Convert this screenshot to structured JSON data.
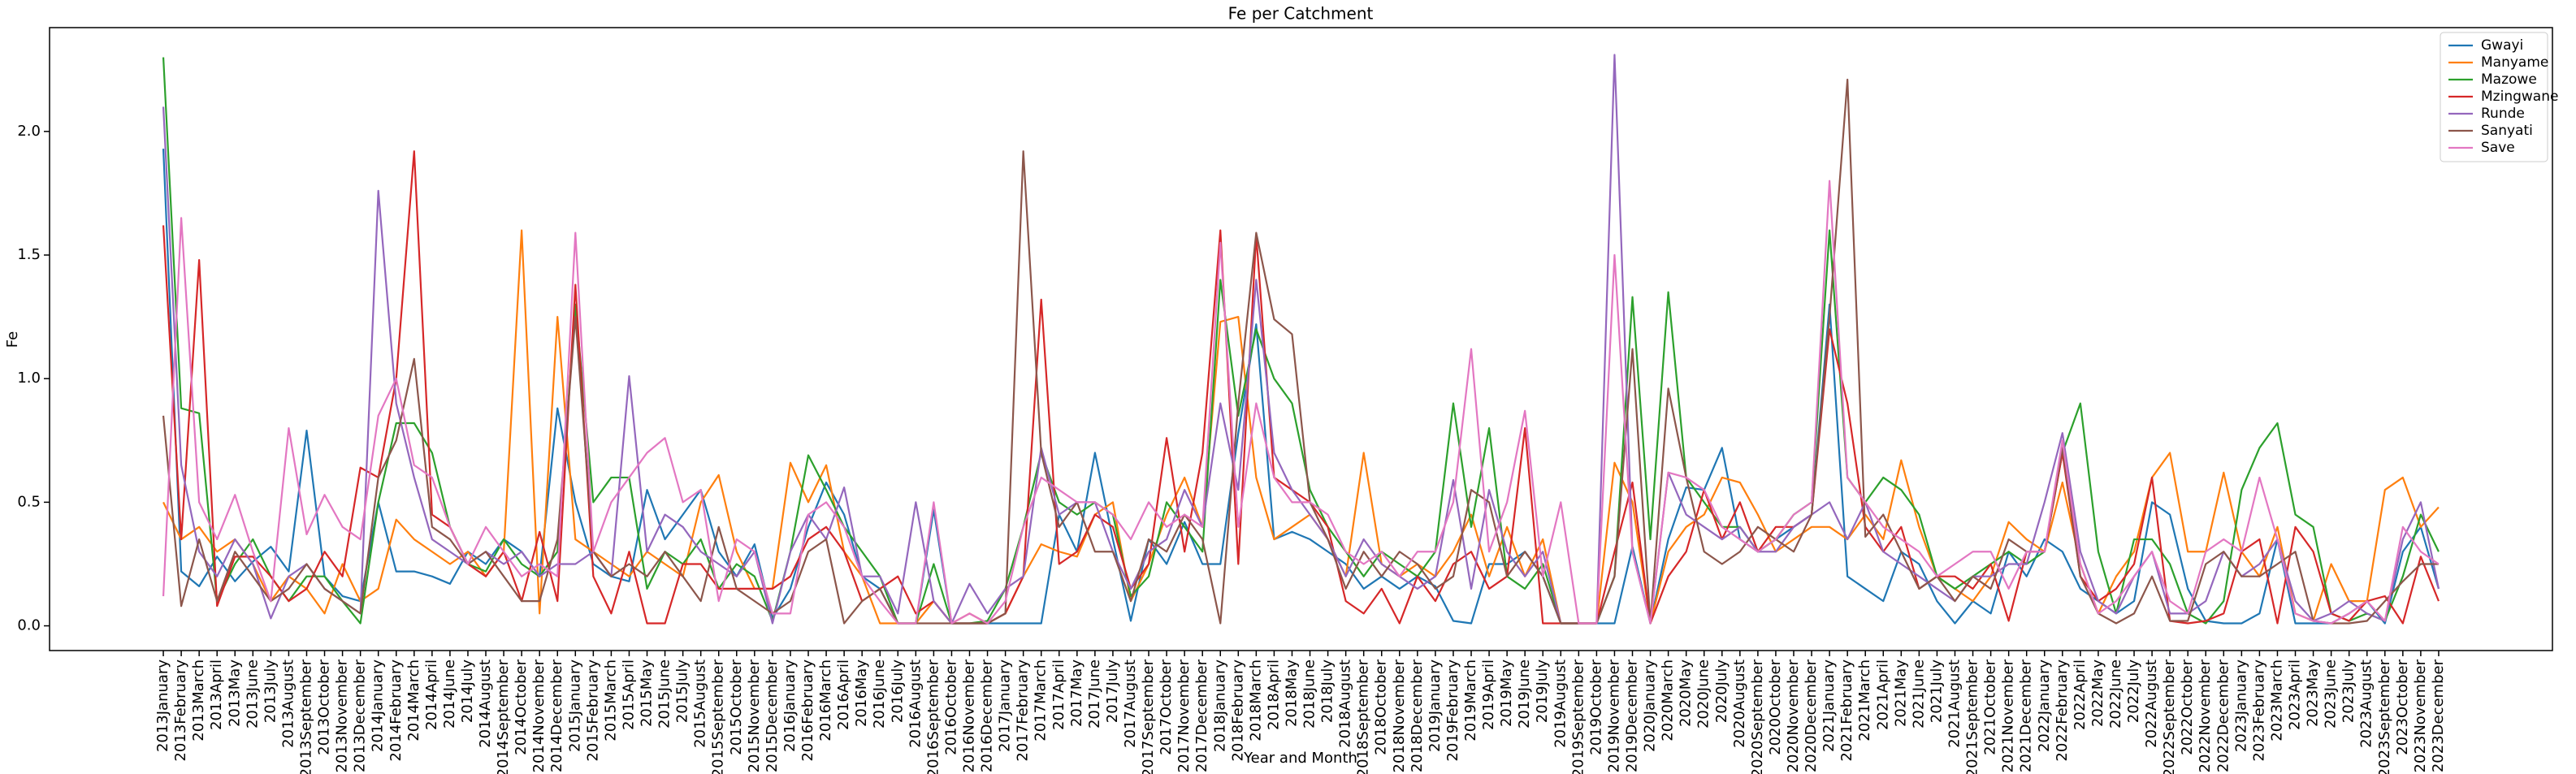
{
  "chart_data": {
    "type": "line",
    "title": "Fe per Catchment",
    "xlabel": "Year and Month",
    "ylabel": "Fe",
    "categories": [
      "2013January",
      "2013February",
      "2013March",
      "2013April",
      "2013May",
      "2013June",
      "2013July",
      "2013August",
      "2013September",
      "2013October",
      "2013November",
      "2013December",
      "2014January",
      "2014February",
      "2014March",
      "2014April",
      "2014June",
      "2014July",
      "2014August",
      "2014September",
      "2014October",
      "2014November",
      "2014December",
      "2015January",
      "2015February",
      "2015March",
      "2015April",
      "2015May",
      "2015June",
      "2015July",
      "2015August",
      "2015September",
      "2015October",
      "2015November",
      "2015December",
      "2016January",
      "2016February",
      "2016March",
      "2016April",
      "2016May",
      "2016June",
      "2016July",
      "2016August",
      "2016September",
      "2016October",
      "2016November",
      "2016December",
      "2017January",
      "2017February",
      "2017March",
      "2017April",
      "2017May",
      "2017June",
      "2017July",
      "2017August",
      "2017September",
      "2017October",
      "2017November",
      "2017December",
      "2018January",
      "2018February",
      "2018March",
      "2018April",
      "2018May",
      "2018June",
      "2018July",
      "2018August",
      "2018September",
      "2018October",
      "2018November",
      "2018December",
      "2019January",
      "2019February",
      "2019March",
      "2019April",
      "2019May",
      "2019June",
      "2019July",
      "2019August",
      "2019September",
      "2019October",
      "2019November",
      "2019December",
      "2020January",
      "2020March",
      "2020May",
      "2020June",
      "2020July",
      "2020August",
      "2020September",
      "2020October",
      "2020November",
      "2020December",
      "2021January",
      "2021February",
      "2021March",
      "2021April",
      "2021May",
      "2021June",
      "2021July",
      "2021August",
      "2021September",
      "2021October",
      "2021November",
      "2021December",
      "2022January",
      "2022February",
      "2022April",
      "2022May",
      "2022June",
      "2022July",
      "2022August",
      "2022September",
      "2022October",
      "2022November",
      "2022December",
      "2023January",
      "2023February",
      "2023March",
      "2023April",
      "2023May",
      "2023June",
      "2023July",
      "2023August",
      "2023September",
      "2023October",
      "2023November",
      "2023December"
    ],
    "series": [
      {
        "name": "Gwayi",
        "color": "#1f77b4",
        "values": [
          1.93,
          0.22,
          0.16,
          0.28,
          0.18,
          0.26,
          0.32,
          0.22,
          0.79,
          0.2,
          0.12,
          0.1,
          0.5,
          0.22,
          0.22,
          0.2,
          0.17,
          0.3,
          0.25,
          0.35,
          0.3,
          0.2,
          0.88,
          0.5,
          0.25,
          0.2,
          0.18,
          0.55,
          0.35,
          0.45,
          0.55,
          0.3,
          0.2,
          0.33,
          0.03,
          0.15,
          0.4,
          0.58,
          0.45,
          0.2,
          0.15,
          0.01,
          0.01,
          0.47,
          0.01,
          0.01,
          0.01,
          0.01,
          0.01,
          0.01,
          0.45,
          0.3,
          0.7,
          0.35,
          0.02,
          0.35,
          0.25,
          0.42,
          0.25,
          0.25,
          0.78,
          1.22,
          0.35,
          0.38,
          0.35,
          0.3,
          0.25,
          0.15,
          0.2,
          0.15,
          0.2,
          0.16,
          0.02,
          0.01,
          0.25,
          0.25,
          0.3,
          0.2,
          0.01,
          0.01,
          0.01,
          0.01,
          0.32,
          0.01,
          0.35,
          0.56,
          0.55,
          0.72,
          0.35,
          0.3,
          0.35,
          0.4,
          0.45,
          1.3,
          0.2,
          0.15,
          0.1,
          0.3,
          0.25,
          0.1,
          0.01,
          0.1,
          0.05,
          0.3,
          0.2,
          0.35,
          0.3,
          0.15,
          0.1,
          0.05,
          0.1,
          0.5,
          0.45,
          0.15,
          0.02,
          0.01,
          0.01,
          0.05,
          0.35,
          0.01,
          0.01,
          0.01,
          0.05,
          0.1,
          0.01,
          0.3,
          0.4,
          0.15
        ]
      },
      {
        "name": "Manyame",
        "color": "#ff7f0e",
        "values": [
          0.5,
          0.35,
          0.4,
          0.3,
          0.35,
          0.25,
          0.1,
          0.2,
          0.15,
          0.05,
          0.25,
          0.1,
          0.15,
          0.43,
          0.35,
          0.3,
          0.25,
          0.3,
          0.2,
          0.3,
          1.6,
          0.05,
          1.25,
          0.35,
          0.3,
          0.25,
          0.2,
          0.3,
          0.25,
          0.2,
          0.5,
          0.61,
          0.3,
          0.15,
          0.15,
          0.66,
          0.5,
          0.65,
          0.3,
          0.2,
          0.01,
          0.01,
          0.01,
          0.1,
          0.01,
          0.05,
          0.01,
          0.05,
          0.2,
          0.33,
          0.3,
          0.28,
          0.45,
          0.5,
          0.1,
          0.25,
          0.45,
          0.6,
          0.4,
          1.23,
          1.25,
          0.6,
          0.35,
          0.4,
          0.45,
          0.35,
          0.2,
          0.7,
          0.25,
          0.2,
          0.25,
          0.2,
          0.3,
          0.45,
          0.2,
          0.4,
          0.2,
          0.35,
          0.01,
          0.01,
          0.01,
          0.66,
          0.5,
          0.01,
          0.3,
          0.4,
          0.45,
          0.6,
          0.58,
          0.45,
          0.3,
          0.35,
          0.4,
          0.4,
          0.35,
          0.45,
          0.35,
          0.67,
          0.4,
          0.2,
          0.15,
          0.1,
          0.2,
          0.42,
          0.35,
          0.3,
          0.58,
          0.25,
          0.05,
          0.2,
          0.3,
          0.6,
          0.7,
          0.3,
          0.3,
          0.62,
          0.3,
          0.2,
          0.4,
          0.05,
          0.02,
          0.25,
          0.1,
          0.1,
          0.55,
          0.6,
          0.4,
          0.48
        ]
      },
      {
        "name": "Mazowe",
        "color": "#2ca02c",
        "values": [
          2.3,
          0.88,
          0.86,
          0.1,
          0.25,
          0.35,
          0.2,
          0.1,
          0.2,
          0.2,
          0.1,
          0.01,
          0.5,
          0.82,
          0.82,
          0.7,
          0.4,
          0.25,
          0.22,
          0.35,
          0.25,
          0.2,
          0.3,
          1.3,
          0.5,
          0.6,
          0.6,
          0.15,
          0.3,
          0.25,
          0.35,
          0.15,
          0.25,
          0.2,
          0.02,
          0.3,
          0.69,
          0.55,
          0.4,
          0.3,
          0.2,
          0.01,
          0.01,
          0.25,
          0.01,
          0.01,
          0.02,
          0.15,
          0.4,
          0.7,
          0.5,
          0.45,
          0.5,
          0.45,
          0.12,
          0.2,
          0.5,
          0.4,
          0.3,
          1.4,
          0.85,
          1.2,
          1.0,
          0.9,
          0.55,
          0.4,
          0.3,
          0.2,
          0.3,
          0.25,
          0.2,
          0.3,
          0.9,
          0.4,
          0.8,
          0.2,
          0.15,
          0.25,
          0.01,
          0.01,
          0.01,
          0.2,
          1.33,
          0.35,
          1.35,
          0.6,
          0.5,
          0.4,
          0.4,
          0.3,
          0.35,
          0.45,
          0.5,
          1.6,
          0.6,
          0.5,
          0.6,
          0.55,
          0.45,
          0.2,
          0.15,
          0.2,
          0.25,
          0.3,
          0.25,
          0.3,
          0.7,
          0.9,
          0.3,
          0.05,
          0.35,
          0.35,
          0.25,
          0.05,
          0.01,
          0.1,
          0.55,
          0.72,
          0.82,
          0.45,
          0.4,
          0.05,
          0.02,
          0.05,
          0.02,
          0.2,
          0.45,
          0.3
        ]
      },
      {
        "name": "Mzingwane",
        "color": "#d62728",
        "values": [
          1.62,
          0.35,
          1.48,
          0.08,
          0.28,
          0.28,
          0.2,
          0.1,
          0.15,
          0.3,
          0.2,
          0.64,
          0.6,
          1.0,
          1.92,
          0.45,
          0.4,
          0.25,
          0.2,
          0.3,
          0.1,
          0.38,
          0.1,
          1.38,
          0.2,
          0.05,
          0.3,
          0.01,
          0.01,
          0.25,
          0.25,
          0.15,
          0.15,
          0.15,
          0.15,
          0.2,
          0.35,
          0.4,
          0.3,
          0.1,
          0.15,
          0.2,
          0.05,
          0.1,
          0.01,
          0.01,
          0.01,
          0.05,
          0.2,
          1.32,
          0.25,
          0.3,
          0.45,
          0.4,
          0.15,
          0.25,
          0.76,
          0.3,
          0.7,
          1.6,
          0.25,
          1.58,
          0.6,
          0.55,
          0.5,
          0.4,
          0.1,
          0.05,
          0.15,
          0.01,
          0.2,
          0.1,
          0.25,
          0.3,
          0.15,
          0.2,
          0.8,
          0.01,
          0.01,
          0.01,
          0.01,
          0.3,
          0.58,
          0.01,
          0.2,
          0.3,
          0.55,
          0.35,
          0.5,
          0.3,
          0.4,
          0.4,
          0.45,
          1.2,
          0.9,
          0.4,
          0.3,
          0.4,
          0.15,
          0.2,
          0.2,
          0.15,
          0.25,
          0.02,
          0.3,
          0.3,
          0.7,
          0.2,
          0.1,
          0.15,
          0.25,
          0.6,
          0.02,
          0.01,
          0.02,
          0.05,
          0.3,
          0.35,
          0.01,
          0.4,
          0.3,
          0.05,
          0.02,
          0.1,
          0.12,
          0.01,
          0.28,
          0.1
        ]
      },
      {
        "name": "Runde",
        "color": "#9467bd",
        "values": [
          2.1,
          0.65,
          0.3,
          0.2,
          0.35,
          0.25,
          0.03,
          0.2,
          0.25,
          0.15,
          0.1,
          0.05,
          1.76,
          0.9,
          0.6,
          0.35,
          0.3,
          0.25,
          0.3,
          0.25,
          0.3,
          0.2,
          0.25,
          0.25,
          0.3,
          0.2,
          1.01,
          0.3,
          0.45,
          0.4,
          0.3,
          0.25,
          0.2,
          0.3,
          0.01,
          0.3,
          0.45,
          0.35,
          0.56,
          0.2,
          0.2,
          0.05,
          0.5,
          0.1,
          0.01,
          0.17,
          0.05,
          0.15,
          0.2,
          0.72,
          0.45,
          0.5,
          0.5,
          0.3,
          0.15,
          0.3,
          0.35,
          0.55,
          0.4,
          0.9,
          0.55,
          1.4,
          0.7,
          0.55,
          0.45,
          0.35,
          0.2,
          0.35,
          0.25,
          0.2,
          0.15,
          0.2,
          0.59,
          0.15,
          0.55,
          0.3,
          0.2,
          0.3,
          0.01,
          0.01,
          0.01,
          2.31,
          0.3,
          0.01,
          0.62,
          0.45,
          0.4,
          0.35,
          0.4,
          0.3,
          0.3,
          0.4,
          0.45,
          0.5,
          0.35,
          0.5,
          0.3,
          0.25,
          0.2,
          0.15,
          0.1,
          0.2,
          0.2,
          0.25,
          0.25,
          0.5,
          0.78,
          0.3,
          0.1,
          0.05,
          0.2,
          0.3,
          0.05,
          0.05,
          0.1,
          0.3,
          0.2,
          0.25,
          0.35,
          0.1,
          0.02,
          0.05,
          0.1,
          0.05,
          0.02,
          0.35,
          0.5,
          0.15
        ]
      },
      {
        "name": "Sanyati",
        "color": "#8c564b",
        "values": [
          0.85,
          0.08,
          0.35,
          0.1,
          0.3,
          0.2,
          0.1,
          0.15,
          0.25,
          0.15,
          0.1,
          0.05,
          0.6,
          0.75,
          1.08,
          0.4,
          0.35,
          0.25,
          0.3,
          0.2,
          0.1,
          0.1,
          0.35,
          1.25,
          0.3,
          0.2,
          0.25,
          0.2,
          0.3,
          0.2,
          0.1,
          0.4,
          0.15,
          0.1,
          0.05,
          0.1,
          0.3,
          0.35,
          0.01,
          0.1,
          0.15,
          0.01,
          0.01,
          0.01,
          0.01,
          0.01,
          0.01,
          0.05,
          1.92,
          0.7,
          0.4,
          0.5,
          0.3,
          0.3,
          0.1,
          0.35,
          0.3,
          0.45,
          0.35,
          0.01,
          0.9,
          1.59,
          1.24,
          1.18,
          0.5,
          0.35,
          0.15,
          0.3,
          0.2,
          0.3,
          0.25,
          0.15,
          0.2,
          0.55,
          0.5,
          0.2,
          0.3,
          0.2,
          0.01,
          0.01,
          0.01,
          0.2,
          1.12,
          0.01,
          0.96,
          0.6,
          0.3,
          0.25,
          0.3,
          0.4,
          0.35,
          0.3,
          0.45,
          1.25,
          2.21,
          0.36,
          0.45,
          0.3,
          0.15,
          0.2,
          0.1,
          0.2,
          0.15,
          0.35,
          0.3,
          0.3,
          0.72,
          0.2,
          0.05,
          0.01,
          0.05,
          0.2,
          0.02,
          0.02,
          0.25,
          0.3,
          0.2,
          0.2,
          0.25,
          0.3,
          0.02,
          0.01,
          0.01,
          0.02,
          0.1,
          0.18,
          0.25,
          0.25
        ]
      },
      {
        "name": "Save",
        "color": "#e377c2",
        "values": [
          0.12,
          1.65,
          0.5,
          0.35,
          0.53,
          0.3,
          0.1,
          0.8,
          0.37,
          0.53,
          0.4,
          0.35,
          0.85,
          1.0,
          0.65,
          0.6,
          0.4,
          0.25,
          0.4,
          0.3,
          0.2,
          0.25,
          0.2,
          1.59,
          0.3,
          0.5,
          0.6,
          0.7,
          0.76,
          0.5,
          0.55,
          0.1,
          0.35,
          0.3,
          0.05,
          0.05,
          0.45,
          0.5,
          0.4,
          0.2,
          0.1,
          0.01,
          0.01,
          0.5,
          0.01,
          0.05,
          0.01,
          0.1,
          0.4,
          0.6,
          0.55,
          0.5,
          0.5,
          0.45,
          0.35,
          0.5,
          0.4,
          0.45,
          0.4,
          1.55,
          0.4,
          0.9,
          0.6,
          0.5,
          0.5,
          0.45,
          0.3,
          0.25,
          0.3,
          0.2,
          0.3,
          0.3,
          0.5,
          1.12,
          0.3,
          0.5,
          0.87,
          0.2,
          0.5,
          0.01,
          0.01,
          1.5,
          0.3,
          0.01,
          0.62,
          0.6,
          0.55,
          0.4,
          0.35,
          0.3,
          0.35,
          0.45,
          0.5,
          1.8,
          0.6,
          0.5,
          0.4,
          0.35,
          0.3,
          0.2,
          0.25,
          0.3,
          0.3,
          0.15,
          0.3,
          0.3,
          0.75,
          0.25,
          0.05,
          0.1,
          0.2,
          0.3,
          0.1,
          0.05,
          0.3,
          0.35,
          0.3,
          0.6,
          0.35,
          0.05,
          0.02,
          0.01,
          0.05,
          0.1,
          0.02,
          0.4,
          0.3,
          0.25
        ]
      }
    ],
    "ylim": [
      -0.1,
      2.42
    ],
    "yticks": [
      {
        "value": 0,
        "label": "0.0"
      },
      0.5,
      {
        "value": 1,
        "label": "1.0"
      },
      1.5,
      {
        "value": 2,
        "label": "2.0"
      }
    ],
    "legend": "upper right",
    "grid": false
  }
}
